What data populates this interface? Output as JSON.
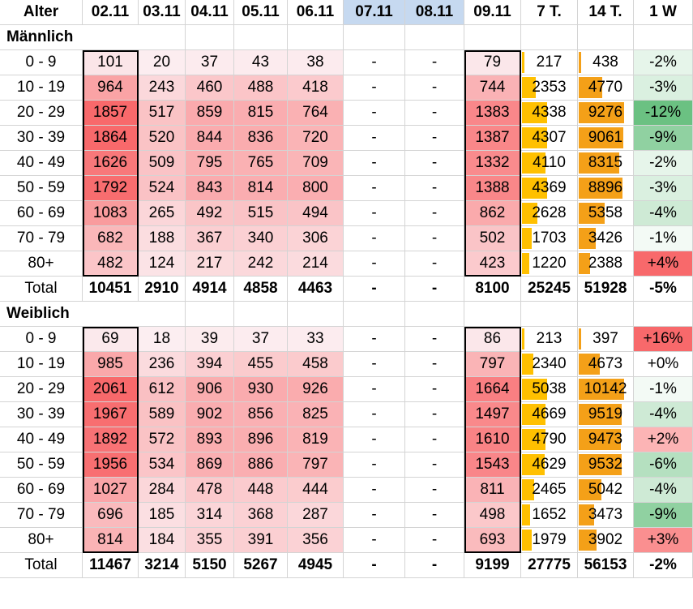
{
  "header": {
    "age_label": "Alter",
    "columns": [
      "02.11",
      "03.11",
      "04.11",
      "05.11",
      "06.11",
      "07.11",
      "08.11",
      "09.11",
      "7 T.",
      "14 T.",
      "1 W"
    ]
  },
  "colors": {
    "weekend_header": "#c6d9f0",
    "bar7": "#ffc000",
    "bar14": "#f4a018",
    "heat_max": "#f8696b",
    "heat_min": "#fcfcff",
    "green_max": "#63be7b"
  },
  "sections": [
    {
      "title": "Männlich",
      "max7": 4369,
      "max14": 9276,
      "rows": [
        {
          "age": "0 - 9",
          "vals": [
            "101",
            "20",
            "37",
            "43",
            "38",
            "-",
            "-",
            "79",
            "217",
            "438",
            "-2%"
          ]
        },
        {
          "age": "10 - 19",
          "vals": [
            "964",
            "243",
            "460",
            "488",
            "418",
            "-",
            "-",
            "744",
            "2353",
            "4770",
            "-3%"
          ]
        },
        {
          "age": "20 - 29",
          "vals": [
            "1857",
            "517",
            "859",
            "815",
            "764",
            "-",
            "-",
            "1383",
            "4338",
            "9276",
            "-12%"
          ]
        },
        {
          "age": "30 - 39",
          "vals": [
            "1864",
            "520",
            "844",
            "836",
            "720",
            "-",
            "-",
            "1387",
            "4307",
            "9061",
            "-9%"
          ]
        },
        {
          "age": "40 - 49",
          "vals": [
            "1626",
            "509",
            "795",
            "765",
            "709",
            "-",
            "-",
            "1332",
            "4110",
            "8315",
            "-2%"
          ]
        },
        {
          "age": "50 - 59",
          "vals": [
            "1792",
            "524",
            "843",
            "814",
            "800",
            "-",
            "-",
            "1388",
            "4369",
            "8896",
            "-3%"
          ]
        },
        {
          "age": "60 - 69",
          "vals": [
            "1083",
            "265",
            "492",
            "515",
            "494",
            "-",
            "-",
            "862",
            "2628",
            "5358",
            "-4%"
          ]
        },
        {
          "age": "70 - 79",
          "vals": [
            "682",
            "188",
            "367",
            "340",
            "306",
            "-",
            "-",
            "502",
            "1703",
            "3426",
            "-1%"
          ]
        },
        {
          "age": "80+",
          "vals": [
            "482",
            "124",
            "217",
            "242",
            "214",
            "-",
            "-",
            "423",
            "1220",
            "2388",
            "+4%"
          ]
        }
      ],
      "total": {
        "label": "Total",
        "vals": [
          "10451",
          "2910",
          "4914",
          "4858",
          "4463",
          "-",
          "-",
          "8100",
          "25245",
          "51928",
          "-5%"
        ]
      }
    },
    {
      "title": "Weiblich",
      "max7": 5038,
      "max14": 10142,
      "rows": [
        {
          "age": "0 - 9",
          "vals": [
            "69",
            "18",
            "39",
            "37",
            "33",
            "-",
            "-",
            "86",
            "213",
            "397",
            "+16%"
          ]
        },
        {
          "age": "10 - 19",
          "vals": [
            "985",
            "236",
            "394",
            "455",
            "458",
            "-",
            "-",
            "797",
            "2340",
            "4673",
            "+0%"
          ]
        },
        {
          "age": "20 - 29",
          "vals": [
            "2061",
            "612",
            "906",
            "930",
            "926",
            "-",
            "-",
            "1664",
            "5038",
            "10142",
            "-1%"
          ]
        },
        {
          "age": "30 - 39",
          "vals": [
            "1967",
            "589",
            "902",
            "856",
            "825",
            "-",
            "-",
            "1497",
            "4669",
            "9519",
            "-4%"
          ]
        },
        {
          "age": "40 - 49",
          "vals": [
            "1892",
            "572",
            "893",
            "896",
            "819",
            "-",
            "-",
            "1610",
            "4790",
            "9473",
            "+2%"
          ]
        },
        {
          "age": "50 - 59",
          "vals": [
            "1956",
            "534",
            "869",
            "886",
            "797",
            "-",
            "-",
            "1543",
            "4629",
            "9532",
            "-6%"
          ]
        },
        {
          "age": "60 - 69",
          "vals": [
            "1027",
            "284",
            "478",
            "448",
            "444",
            "-",
            "-",
            "811",
            "2465",
            "5042",
            "-4%"
          ]
        },
        {
          "age": "70 - 79",
          "vals": [
            "696",
            "185",
            "314",
            "368",
            "287",
            "-",
            "-",
            "498",
            "1652",
            "3473",
            "-9%"
          ]
        },
        {
          "age": "80+",
          "vals": [
            "814",
            "184",
            "355",
            "391",
            "356",
            "-",
            "-",
            "693",
            "1979",
            "3902",
            "+3%"
          ]
        }
      ],
      "total": {
        "label": "Total",
        "vals": [
          "11467",
          "3214",
          "5150",
          "5267",
          "4945",
          "-",
          "-",
          "9199",
          "27775",
          "56153",
          "-2%"
        ]
      }
    }
  ]
}
